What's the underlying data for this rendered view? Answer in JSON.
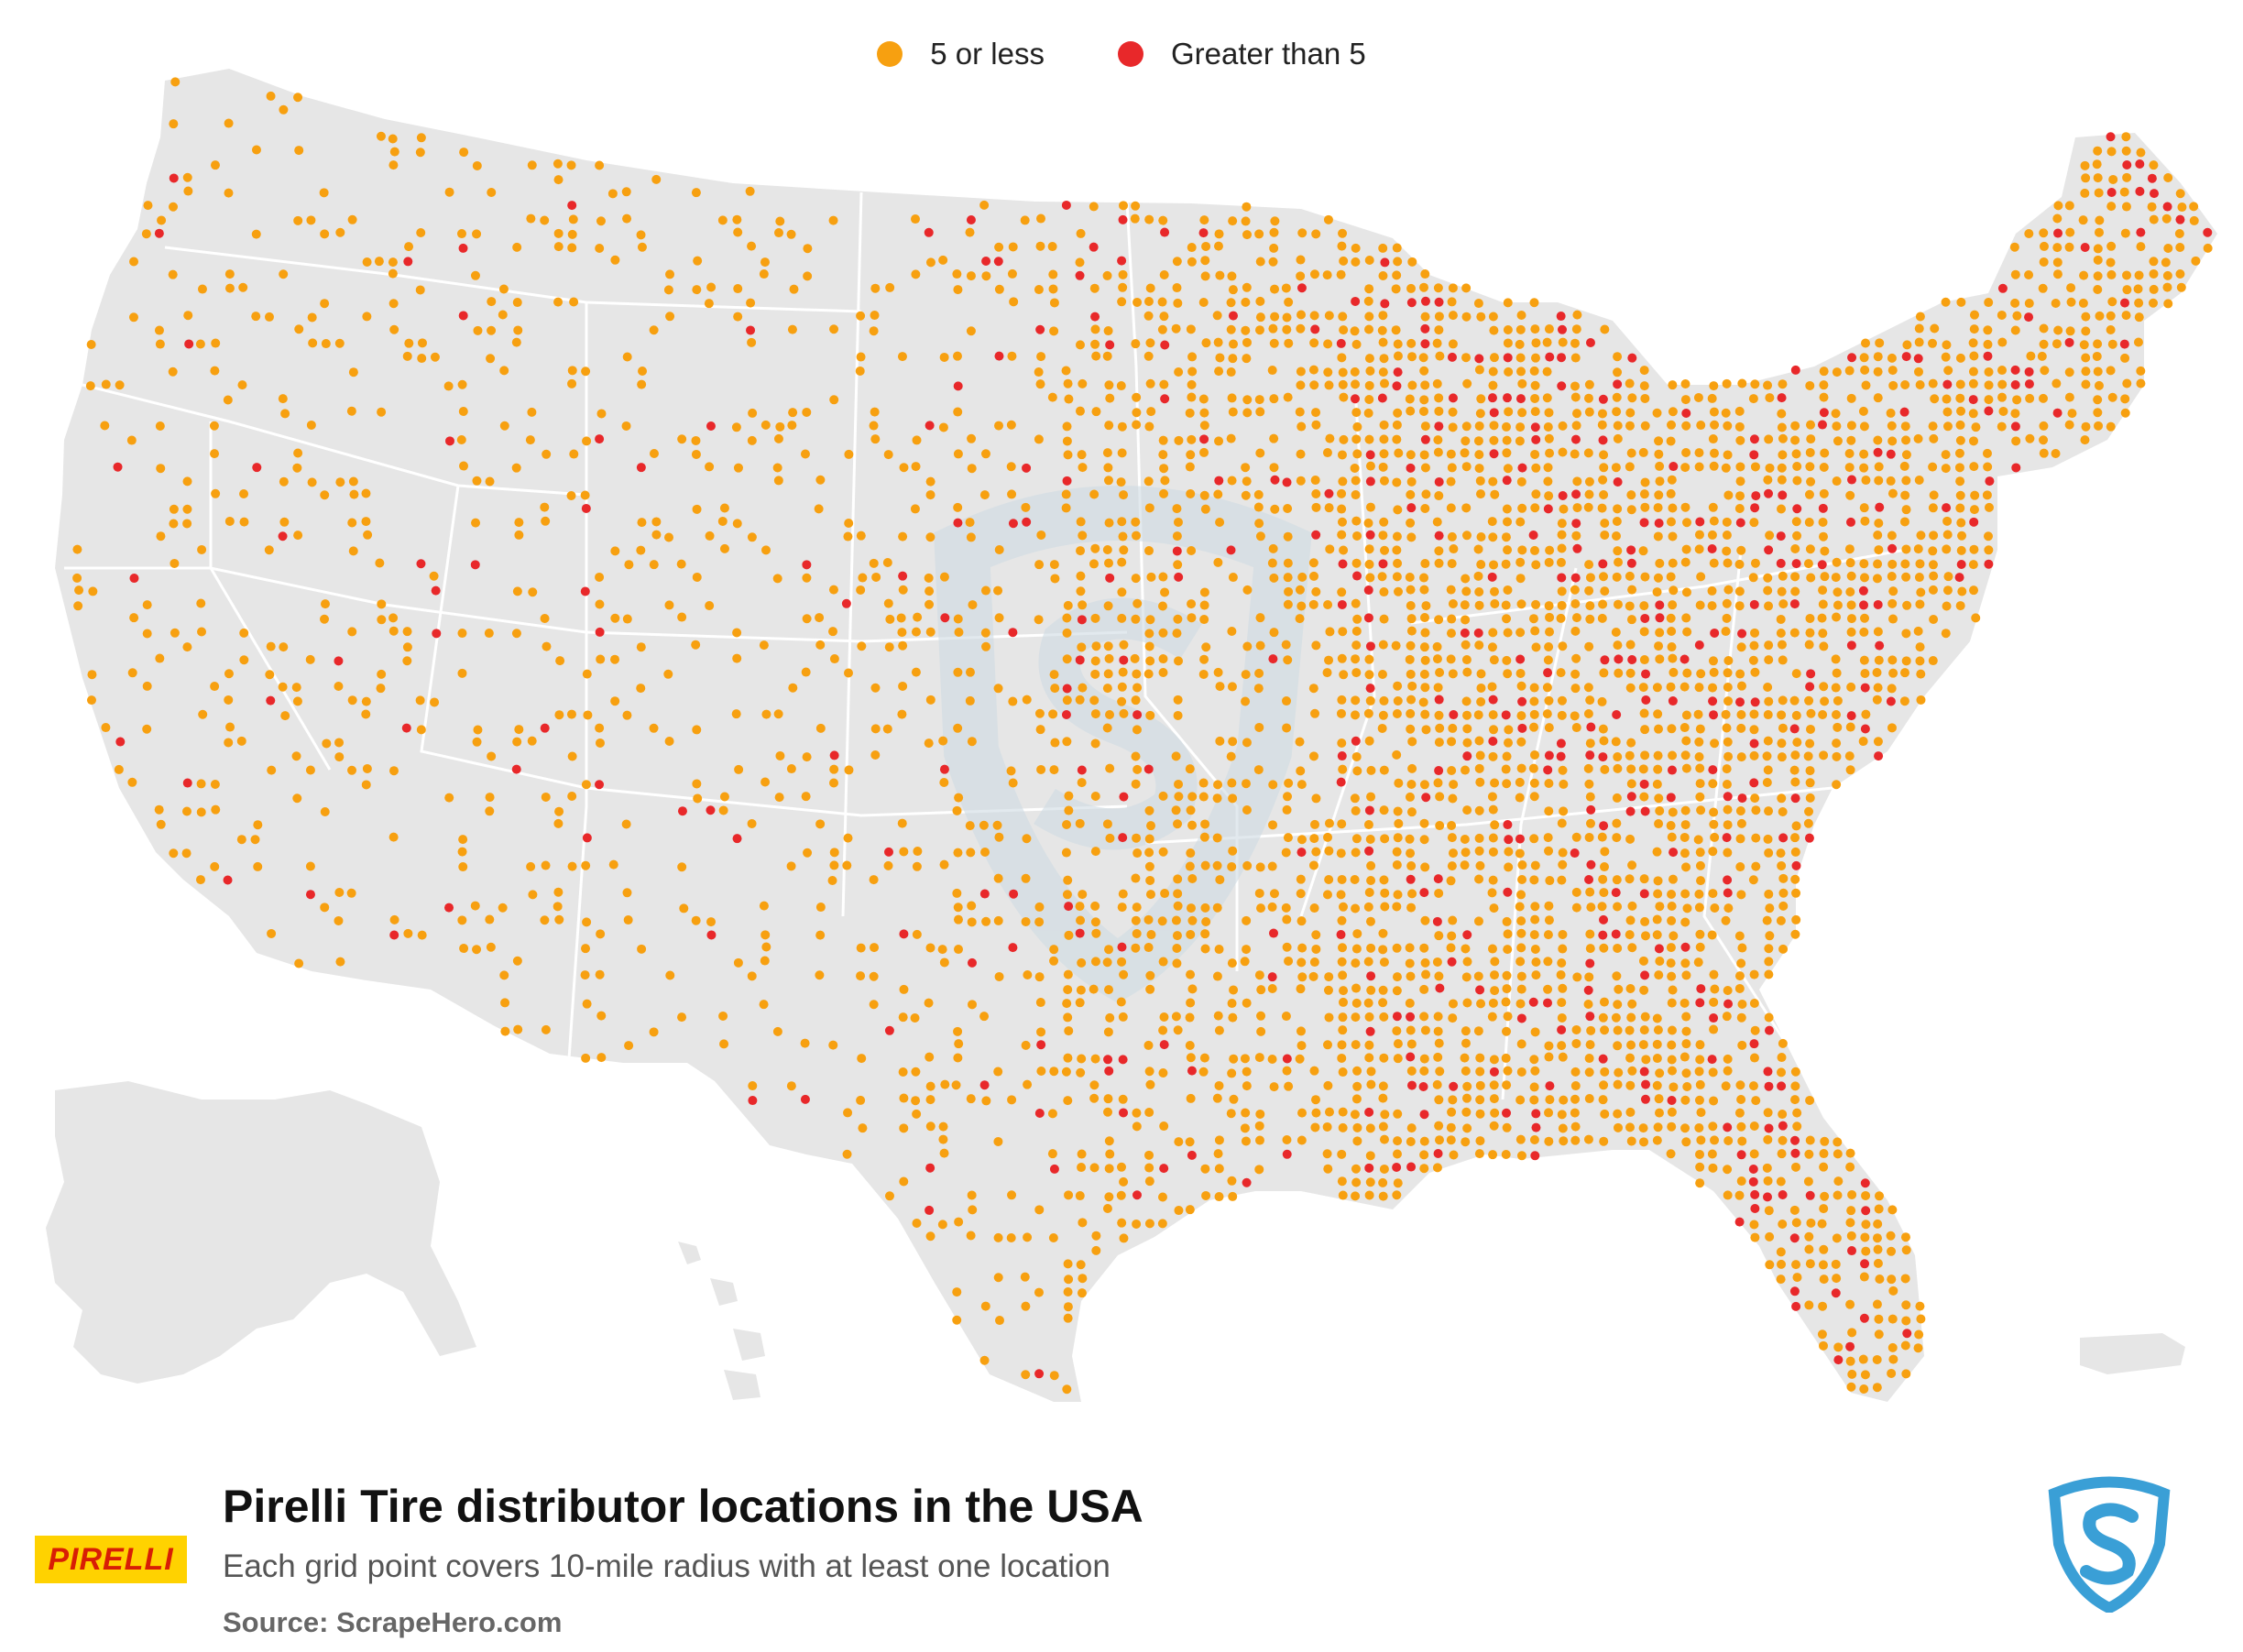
{
  "legend": {
    "items": [
      {
        "label": "5 or less",
        "color": "#f7a010"
      },
      {
        "label": "Greater than 5",
        "color": "#e8282a"
      }
    ]
  },
  "map": {
    "land_color": "#e6e6e6",
    "border_color": "#ffffff",
    "watermark_color": "#cfdce3"
  },
  "footer": {
    "title": "Pirelli Tire distributor locations in the USA",
    "subtitle": "Each grid point covers 10-mile radius with at least one location",
    "source": "Source: ScrapeHero.com"
  },
  "brand": {
    "pirelli_logo_text": "PIRELLI",
    "pirelli_bg": "#ffd200",
    "pirelli_fg": "#d81e05",
    "scrapehero_color": "#3a9fd6"
  }
}
